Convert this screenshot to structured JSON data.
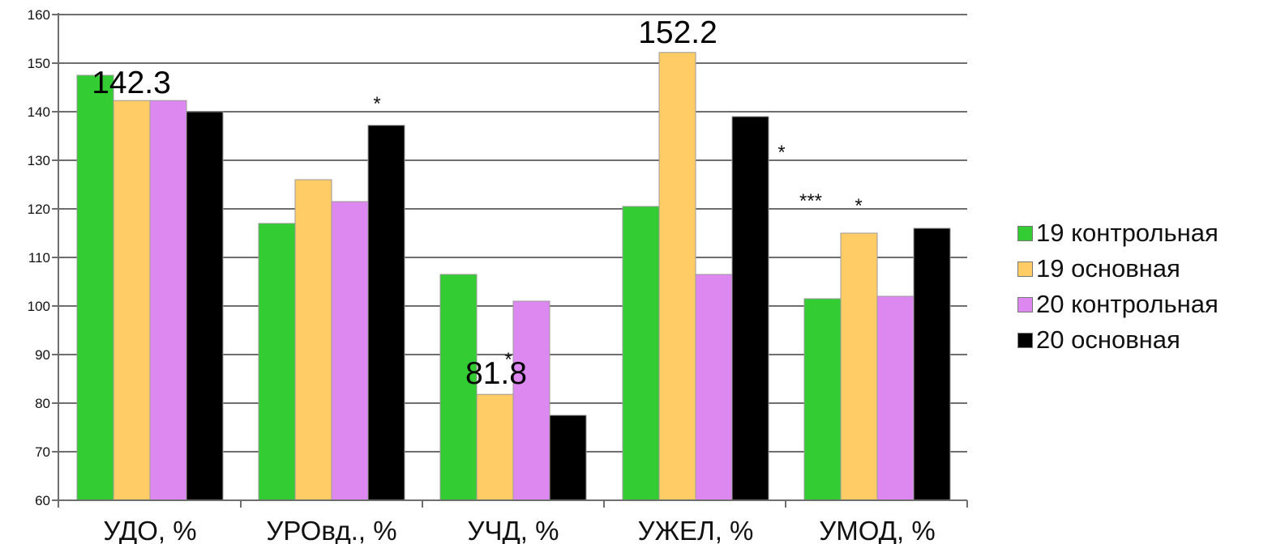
{
  "chart_data": {
    "type": "bar",
    "title": "",
    "xlabel": "",
    "ylabel": "",
    "ylim": [
      60,
      160
    ],
    "ytick_step": 10,
    "yticks": [
      "60",
      "70",
      "80",
      "90",
      "100",
      "110",
      "120",
      "130",
      "140",
      "150",
      "160"
    ],
    "grid": true,
    "categories": [
      "УДО, %",
      "УРОвд., %",
      "УЧД, %",
      "УЖЕЛ, %",
      "УМОД, %"
    ],
    "series": [
      {
        "name": "19 контрольная",
        "color": "#33cc33",
        "values": [
          147.5,
          117,
          106.5,
          120.5,
          101.5
        ]
      },
      {
        "name": "19 основная",
        "color": "#ffcc66",
        "values": [
          142.3,
          126,
          81.8,
          152.2,
          115
        ]
      },
      {
        "name": "20 контрольная",
        "color": "#dd88f0",
        "values": [
          142.3,
          121.5,
          101,
          106.5,
          102
        ]
      },
      {
        "name": "20 основная",
        "color": "#000000",
        "values": [
          140,
          137.2,
          77.5,
          139,
          116
        ]
      }
    ],
    "data_labels": [
      "142.3",
      "81.8",
      "152.2"
    ],
    "significance_marks": [
      "*",
      "*",
      "*",
      "***",
      "*"
    ],
    "legend_position": "right"
  }
}
